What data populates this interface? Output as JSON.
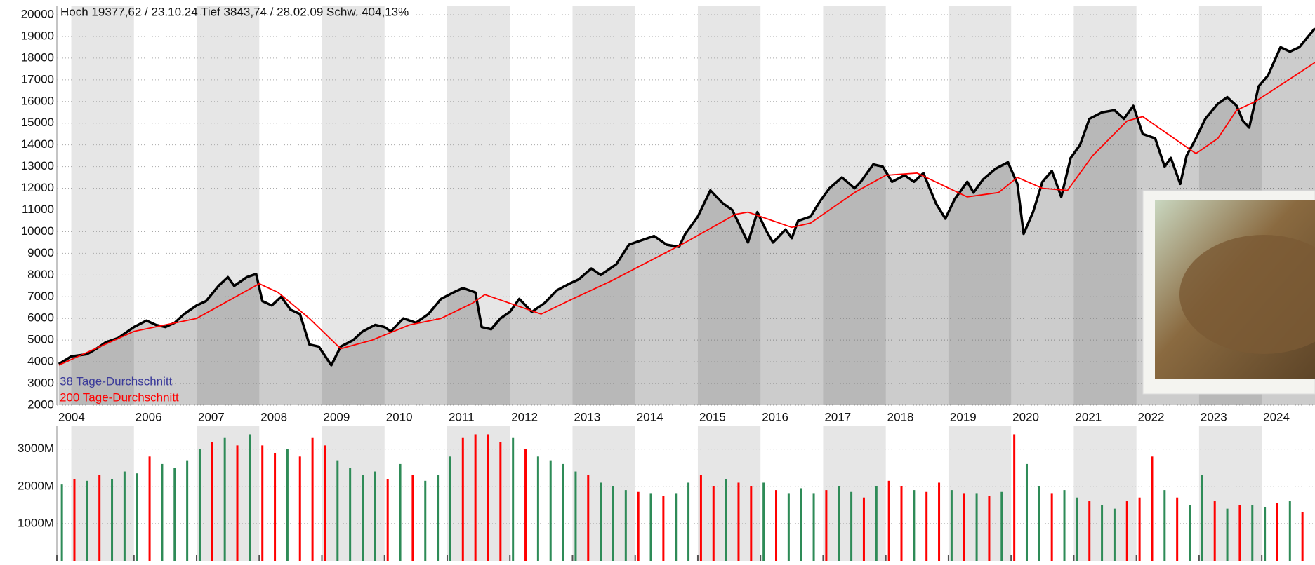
{
  "chart_data": [
    {
      "type": "line",
      "title": "Hoch 19377,62 / 23.10.24 Tief 3843,74 / 28.02.09 Schw. 404,13%",
      "xlim": [
        2004.77,
        2024.85
      ],
      "xticks": [
        {
          "value": 2004.77,
          "label": "2004"
        },
        2006,
        2007,
        2008,
        2009,
        2010,
        2011,
        2012,
        2013,
        2014,
        2015,
        2016,
        2017,
        2018,
        2019,
        2020,
        2021,
        2022,
        2023,
        2024
      ],
      "ylim": [
        2000,
        20000
      ],
      "yticks": [
        2000,
        3000,
        4000,
        5000,
        6000,
        7000,
        8000,
        9000,
        10000,
        11000,
        12000,
        13000,
        14000,
        15000,
        16000,
        17000,
        18000,
        19000,
        20000
      ],
      "grid": true,
      "legend_extra": {
        "name": "38 Tage-Durchschnitt",
        "color": "#3a3a9a"
      },
      "series": [
        {
          "color": "#000000",
          "x": [
            2004.8,
            2005.0,
            2005.25,
            2005.4,
            2005.55,
            2005.75,
            2005.9,
            2006.0,
            2006.2,
            2006.35,
            2006.5,
            2006.65,
            2006.8,
            2007.0,
            2007.15,
            2007.35,
            2007.5,
            2007.6,
            2007.8,
            2007.95,
            2008.05,
            2008.2,
            2008.35,
            2008.5,
            2008.65,
            2008.8,
            2008.95,
            2009.15,
            2009.3,
            2009.5,
            2009.65,
            2009.85,
            2010.0,
            2010.1,
            2010.3,
            2010.5,
            2010.7,
            2010.9,
            2011.1,
            2011.25,
            2011.45,
            2011.55,
            2011.7,
            2011.85,
            2012.0,
            2012.15,
            2012.35,
            2012.55,
            2012.75,
            2012.95,
            2013.1,
            2013.3,
            2013.45,
            2013.7,
            2013.9,
            2014.1,
            2014.3,
            2014.5,
            2014.7,
            2014.8,
            2015.0,
            2015.2,
            2015.4,
            2015.55,
            2015.7,
            2015.8,
            2015.95,
            2016.1,
            2016.2,
            2016.4,
            2016.5,
            2016.6,
            2016.8,
            2016.95,
            2017.1,
            2017.3,
            2017.5,
            2017.6,
            2017.8,
            2017.95,
            2018.1,
            2018.3,
            2018.45,
            2018.6,
            2018.8,
            2018.95,
            2019.1,
            2019.3,
            2019.4,
            2019.55,
            2019.75,
            2019.95,
            2020.1,
            2020.2,
            2020.35,
            2020.5,
            2020.65,
            2020.8,
            2020.95,
            2021.1,
            2021.25,
            2021.45,
            2021.65,
            2021.8,
            2021.95,
            2022.1,
            2022.3,
            2022.45,
            2022.55,
            2022.7,
            2022.8,
            2022.95,
            2023.1,
            2023.3,
            2023.45,
            2023.6,
            2023.7,
            2023.8,
            2023.95,
            2024.1,
            2024.3,
            2024.45,
            2024.6,
            2024.85
          ],
          "values": [
            3900,
            4250,
            4350,
            4600,
            4900,
            5100,
            5400,
            5600,
            5900,
            5700,
            5600,
            5800,
            6200,
            6600,
            6800,
            7500,
            7900,
            7500,
            7900,
            8050,
            6800,
            6600,
            7000,
            6400,
            6200,
            4800,
            4700,
            3844,
            4700,
            5000,
            5400,
            5700,
            5600,
            5400,
            6000,
            5800,
            6200,
            6900,
            7200,
            7400,
            7200,
            5600,
            5500,
            6000,
            6300,
            6900,
            6300,
            6700,
            7300,
            7600,
            7800,
            8300,
            8000,
            8500,
            9400,
            9600,
            9800,
            9400,
            9300,
            9900,
            10700,
            11900,
            11300,
            11000,
            10100,
            9500,
            10900,
            10000,
            9500,
            10100,
            9700,
            10500,
            10700,
            11400,
            12000,
            12500,
            12000,
            12300,
            13100,
            13000,
            12300,
            12600,
            12300,
            12700,
            11300,
            10600,
            11500,
            12300,
            11800,
            12400,
            12900,
            13200,
            12200,
            9900,
            10900,
            12300,
            12800,
            11600,
            13400,
            14000,
            15200,
            15500,
            15600,
            15200,
            15800,
            14500,
            14300,
            13000,
            13400,
            12200,
            13500,
            14300,
            15200,
            15900,
            16200,
            15800,
            15100,
            14800,
            16700,
            17200,
            18500,
            18300,
            18500,
            19378
          ]
        },
        {
          "name": "200 Tage-Durchschnitt",
          "color": "#ff0000",
          "x": [
            2004.8,
            2006.0,
            2007.0,
            2008.0,
            2008.3,
            2008.8,
            2009.3,
            2009.8,
            2010.4,
            2010.9,
            2011.4,
            2011.6,
            2012.3,
            2012.5,
            2013.0,
            2013.6,
            2014.2,
            2014.8,
            2015.6,
            2015.8,
            2016.5,
            2016.8,
            2017.5,
            2018.0,
            2018.5,
            2019.3,
            2019.8,
            2020.1,
            2020.5,
            2020.9,
            2021.3,
            2021.85,
            2022.1,
            2022.95,
            2023.3,
            2023.6,
            2023.9,
            2024.85
          ],
          "values": [
            3850,
            5400,
            6000,
            7600,
            7200,
            6000,
            4600,
            5000,
            5700,
            6000,
            6700,
            7100,
            6400,
            6200,
            6900,
            7700,
            8600,
            9500,
            10800,
            10900,
            10200,
            10400,
            11800,
            12600,
            12700,
            11600,
            11800,
            12500,
            12000,
            11900,
            13500,
            15100,
            15300,
            13600,
            14300,
            15600,
            16000,
            17800
          ]
        }
      ]
    },
    {
      "type": "bar",
      "xlim": [
        2004.77,
        2024.85
      ],
      "ylim": [
        0,
        3540
      ],
      "yticks": [
        {
          "value": 1000,
          "label": "1000M"
        },
        {
          "value": 2000,
          "label": "2000M"
        },
        {
          "value": 3000,
          "label": "3000M"
        }
      ],
      "x": [
        2004.85,
        2005.05,
        2005.25,
        2005.45,
        2005.65,
        2005.85,
        2006.05,
        2006.25,
        2006.45,
        2006.65,
        2006.85,
        2007.05,
        2007.25,
        2007.45,
        2007.65,
        2007.85,
        2008.05,
        2008.25,
        2008.45,
        2008.65,
        2008.85,
        2009.05,
        2009.25,
        2009.45,
        2009.65,
        2009.85,
        2010.05,
        2010.25,
        2010.45,
        2010.65,
        2010.85,
        2011.05,
        2011.25,
        2011.45,
        2011.65,
        2011.85,
        2012.05,
        2012.25,
        2012.45,
        2012.65,
        2012.85,
        2013.05,
        2013.25,
        2013.45,
        2013.65,
        2013.85,
        2014.05,
        2014.25,
        2014.45,
        2014.65,
        2014.85,
        2015.05,
        2015.25,
        2015.45,
        2015.65,
        2015.85,
        2016.05,
        2016.25,
        2016.45,
        2016.65,
        2016.85,
        2017.05,
        2017.25,
        2017.45,
        2017.65,
        2017.85,
        2018.05,
        2018.25,
        2018.45,
        2018.65,
        2018.85,
        2019.05,
        2019.25,
        2019.45,
        2019.65,
        2019.85,
        2020.05,
        2020.25,
        2020.45,
        2020.65,
        2020.85,
        2021.05,
        2021.25,
        2021.45,
        2021.65,
        2021.85,
        2022.05,
        2022.25,
        2022.45,
        2022.65,
        2022.85,
        2023.05,
        2023.25,
        2023.45,
        2023.65,
        2023.85,
        2024.05,
        2024.25,
        2024.45,
        2024.65
      ],
      "values": [
        2050,
        2200,
        2150,
        2300,
        2200,
        2400,
        2350,
        2800,
        2600,
        2500,
        2700,
        3000,
        3200,
        3300,
        3100,
        3400,
        3100,
        2900,
        3000,
        2800,
        3300,
        3100,
        2700,
        2500,
        2300,
        2400,
        2200,
        2600,
        2300,
        2150,
        2300,
        2800,
        3300,
        3400,
        3400,
        3200,
        3300,
        3000,
        2800,
        2700,
        2600,
        2400,
        2300,
        2100,
        2000,
        1900,
        1850,
        1800,
        1750,
        1800,
        2100,
        2300,
        2000,
        2200,
        2100,
        2000,
        2100,
        1900,
        1800,
        1950,
        1800,
        1900,
        2000,
        1850,
        1700,
        2000,
        2150,
        2000,
        1900,
        1850,
        2100,
        1900,
        1800,
        1800,
        1750,
        1850,
        3400,
        2600,
        2000,
        1800,
        1900,
        1700,
        1600,
        1500,
        1400,
        1600,
        1700,
        2800,
        1900,
        1700,
        1500,
        2300,
        1600,
        1400,
        1500,
        1500,
        1450,
        1550,
        1600,
        1300
      ],
      "colors": [
        "seagreen",
        "red",
        "seagreen",
        "red",
        "seagreen",
        "seagreen",
        "seagreen",
        "red",
        "seagreen",
        "seagreen",
        "seagreen",
        "seagreen",
        "red",
        "seagreen",
        "red",
        "seagreen",
        "red",
        "red",
        "seagreen",
        "red",
        "red",
        "red",
        "seagreen",
        "seagreen",
        "seagreen",
        "seagreen",
        "red",
        "seagreen",
        "red",
        "seagreen",
        "seagreen",
        "seagreen",
        "red",
        "red",
        "red",
        "red",
        "seagreen",
        "red",
        "seagreen",
        "seagreen",
        "seagreen",
        "seagreen",
        "red",
        "seagreen",
        "seagreen",
        "seagreen",
        "red",
        "seagreen",
        "red",
        "seagreen",
        "seagreen",
        "red",
        "red",
        "seagreen",
        "red",
        "red",
        "seagreen",
        "red",
        "seagreen",
        "seagreen",
        "seagreen",
        "red",
        "seagreen",
        "seagreen",
        "red",
        "seagreen",
        "red",
        "red",
        "seagreen",
        "red",
        "red",
        "seagreen",
        "red",
        "seagreen",
        "red",
        "seagreen",
        "red",
        "seagreen",
        "seagreen",
        "red",
        "seagreen",
        "seagreen",
        "red",
        "seagreen",
        "seagreen",
        "red",
        "red",
        "red",
        "seagreen",
        "red",
        "seagreen",
        "seagreen",
        "red",
        "seagreen",
        "red",
        "seagreen",
        "seagreen",
        "red",
        "seagreen",
        "red"
      ]
    }
  ]
}
